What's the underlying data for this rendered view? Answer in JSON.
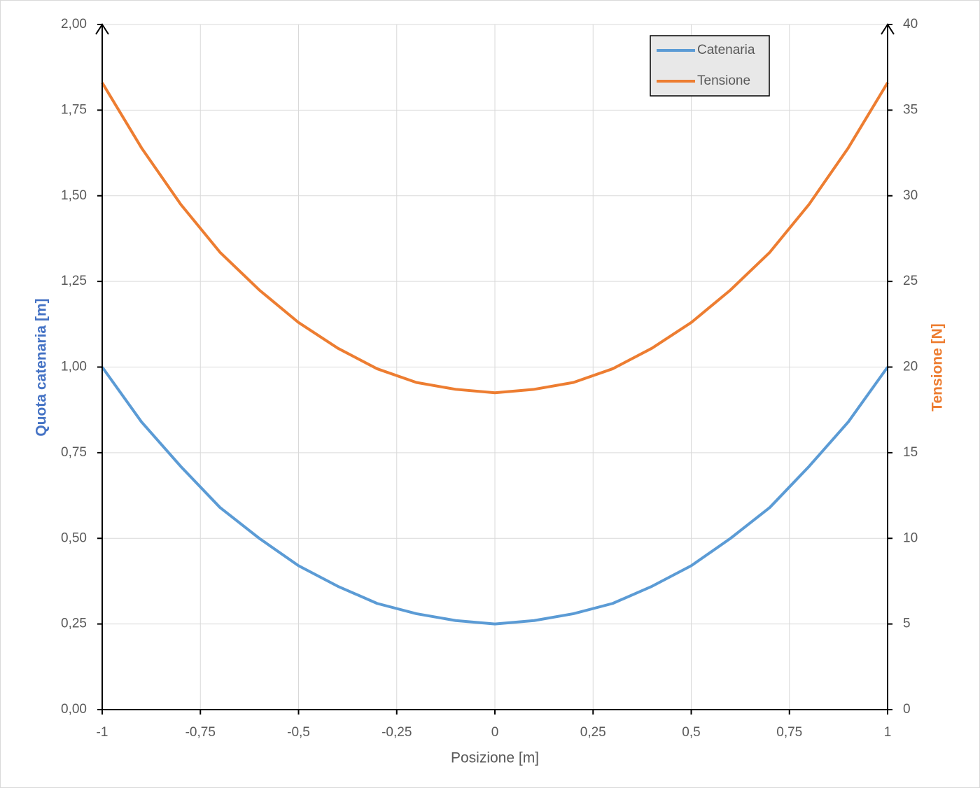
{
  "chart_data": {
    "type": "line",
    "x_label": "Posizione [m]",
    "y_label": "Quota catenaria [m]",
    "y2_label": "Tensione [N]",
    "x": [
      -1,
      -0.9,
      -0.8,
      -0.7,
      -0.6,
      -0.5,
      -0.4,
      -0.3,
      -0.2,
      -0.1,
      0,
      0.1,
      0.2,
      0.3,
      0.4,
      0.5,
      0.6,
      0.7,
      0.8,
      0.9,
      1
    ],
    "series": [
      {
        "name": "Catenaria",
        "color": "#5b9bd5",
        "axis": "y",
        "values": [
          1.0,
          0.84,
          0.71,
          0.59,
          0.5,
          0.42,
          0.36,
          0.31,
          0.28,
          0.26,
          0.25,
          0.26,
          0.28,
          0.31,
          0.36,
          0.42,
          0.5,
          0.59,
          0.71,
          0.84,
          1.0
        ]
      },
      {
        "name": "Tensione",
        "color": "#ed7d31",
        "axis": "y2",
        "values": [
          36.6,
          32.8,
          29.5,
          26.7,
          24.5,
          22.6,
          21.1,
          19.9,
          19.1,
          18.7,
          18.5,
          18.7,
          19.1,
          19.9,
          21.1,
          22.6,
          24.5,
          26.7,
          29.5,
          32.8,
          36.6
        ]
      }
    ],
    "xlim": [
      -1,
      1
    ],
    "xticks": [
      -1,
      {
        "value": -0.75,
        "label": "-0,75"
      },
      {
        "value": -0.5,
        "label": "-0,5"
      },
      {
        "value": -0.25,
        "label": "-0,25"
      },
      0,
      {
        "value": 0.25,
        "label": "0,25"
      },
      {
        "value": 0.5,
        "label": "0,5"
      },
      {
        "value": 0.75,
        "label": "0,75"
      },
      1
    ],
    "ylim": [
      0,
      2
    ],
    "yticks": [
      {
        "value": 0,
        "label": "0,00"
      },
      {
        "value": 0.25,
        "label": "0,25"
      },
      {
        "value": 0.5,
        "label": "0,50"
      },
      {
        "value": 0.75,
        "label": "0,75"
      },
      {
        "value": 1,
        "label": "1,00"
      },
      {
        "value": 1.25,
        "label": "1,25"
      },
      {
        "value": 1.5,
        "label": "1,50"
      },
      {
        "value": 1.75,
        "label": "1,75"
      },
      {
        "value": 2,
        "label": "2,00"
      }
    ],
    "y2lim": [
      0,
      40
    ],
    "y2ticks": [
      0,
      5,
      10,
      15,
      20,
      25,
      30,
      35,
      40
    ],
    "grid": true,
    "legend": "top-right"
  }
}
